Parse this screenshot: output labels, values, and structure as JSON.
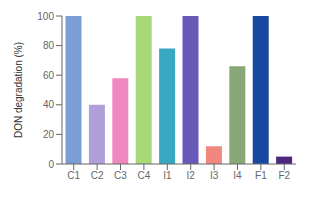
{
  "chart_data": {
    "type": "bar",
    "categories": [
      "C1",
      "C2",
      "C3",
      "C4",
      "I1",
      "I2",
      "I3",
      "I4",
      "F1",
      "F2"
    ],
    "values": [
      100,
      40,
      58,
      100,
      78,
      100,
      12,
      66,
      100,
      5
    ],
    "colors": [
      "#7b9fd4",
      "#b09fd8",
      "#f088c0",
      "#a8d878",
      "#38a8c0",
      "#6858b8",
      "#f08880",
      "#88a878",
      "#1848a0",
      "#4c2880"
    ],
    "ylabel": "DON degradation (%)",
    "ylim": [
      0,
      100
    ],
    "yticks": [
      0,
      20,
      40,
      60,
      80,
      100
    ],
    "grid": false
  }
}
